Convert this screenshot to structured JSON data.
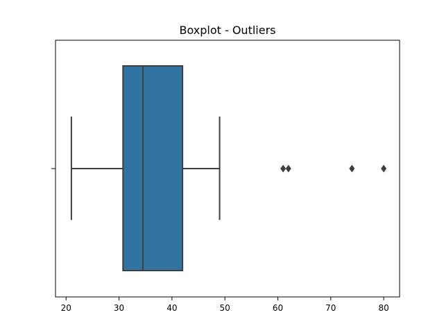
{
  "chart_data": {
    "type": "boxplot",
    "title": "Boxplot - Outliers",
    "xlabel": "",
    "ylabel": "",
    "xlim": [
      18,
      83
    ],
    "xticks": [
      20,
      30,
      40,
      50,
      60,
      70,
      80
    ],
    "grid": false,
    "box": {
      "whisker_low": 21,
      "q1": 30.75,
      "median": 34.5,
      "q3": 42,
      "whisker_high": 49
    },
    "outliers": [
      61,
      62,
      74,
      80
    ],
    "colors": {
      "box_fill": "#3274a1",
      "line": "#3f3f3f"
    }
  }
}
